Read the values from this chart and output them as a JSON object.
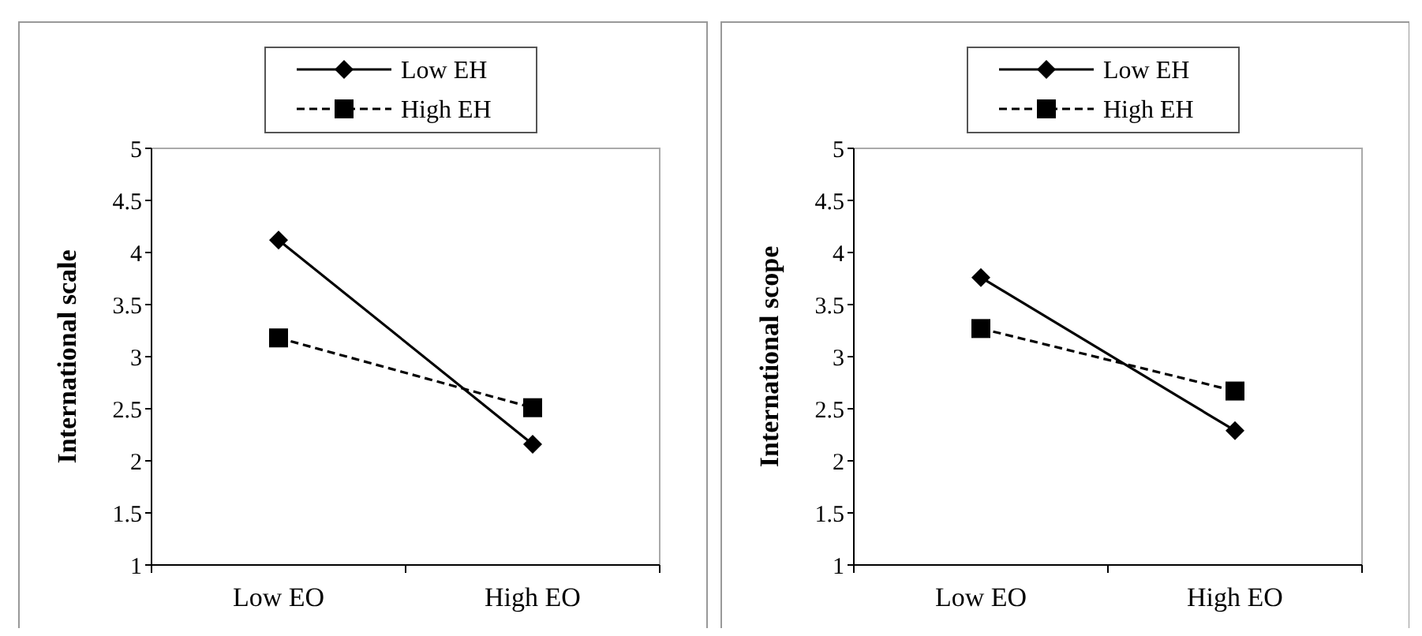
{
  "chart_data": [
    {
      "type": "line",
      "ylabel": "International scale",
      "categories": [
        "Low EO",
        "High EO"
      ],
      "ylim": [
        1,
        5
      ],
      "yticks": [
        1,
        1.5,
        2,
        2.5,
        3,
        3.5,
        4,
        4.5,
        5
      ],
      "grid": false,
      "legend": "top",
      "series": [
        {
          "name": "Low EH",
          "color": "#000000",
          "values": [
            4.12,
            2.16
          ],
          "marker": "diamond",
          "line_style": "solid"
        },
        {
          "name": "High EH",
          "color": "#000000",
          "values": [
            3.18,
            2.51
          ],
          "marker": "square",
          "line_style": "dashed"
        }
      ]
    },
    {
      "type": "line",
      "ylabel": "International scope",
      "categories": [
        "Low EO",
        "High EO"
      ],
      "ylim": [
        1,
        5
      ],
      "yticks": [
        1,
        1.5,
        2,
        2.5,
        3,
        3.5,
        4,
        4.5,
        5
      ],
      "grid": false,
      "legend": "top",
      "series": [
        {
          "name": "Low EH",
          "color": "#000000",
          "values": [
            3.76,
            2.29
          ],
          "marker": "diamond",
          "line_style": "solid"
        },
        {
          "name": "High EH",
          "color": "#000000",
          "values": [
            3.27,
            2.67
          ],
          "marker": "square",
          "line_style": "dashed"
        }
      ]
    }
  ]
}
